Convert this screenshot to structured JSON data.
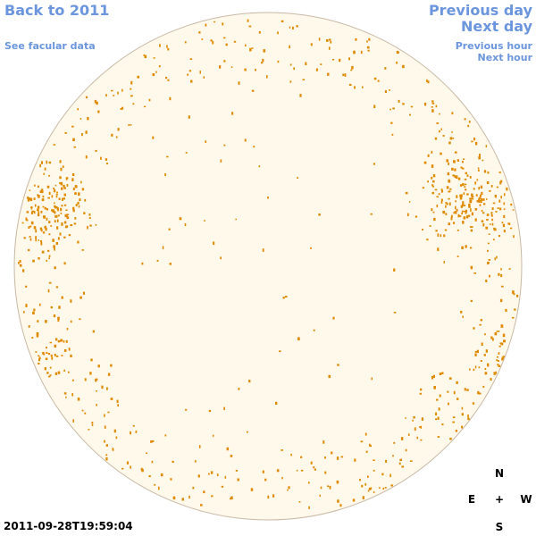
{
  "nav": {
    "back_label": "Back to 2011",
    "facular_label": "See facular data",
    "prev_day_label": "Previous day",
    "next_day_label": "Next day",
    "prev_hour_label": "Previous hour",
    "next_hour_label": "Next hour"
  },
  "timestamp": "2011-09-28T19:59:04",
  "compass": {
    "north": "N",
    "east": "E",
    "center": "+",
    "west": "W",
    "south": "S"
  },
  "colors": {
    "link": "#6b96dd",
    "disk_fill": "#fff9ec",
    "disk_outline": "#c8b8a4",
    "feature": "#e08a00"
  },
  "icons": {
    "solar_disk": "solar-disk-icon"
  }
}
